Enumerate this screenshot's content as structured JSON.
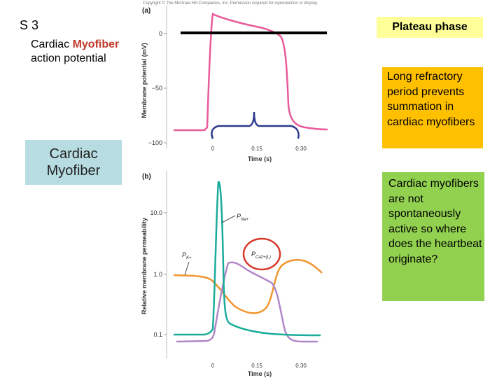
{
  "slide": {
    "number": "S 3",
    "title_prefix": "Cardiac ",
    "title_highlight": "Myofiber",
    "title_line2": "action potential"
  },
  "labels": {
    "myofiber": "Cardiac Myofiber",
    "plateau": "Plateau phase",
    "refractory": "Long refractory period prevents summation in cardiac myofibers",
    "pacemaker": "Cardiac myofibers are not spontaneously active so where does the heartbeat originate?"
  },
  "figure": {
    "copyright": "Copyright © The McGraw-Hill Companies, Inc. Permission required for reproduction or display.",
    "panel_a": {
      "tag": "(a)",
      "ylabel": "Membrane potential (mV)",
      "xlabel": "Time (s)",
      "yticks": [
        "0",
        "−50",
        "−100"
      ],
      "xticks": [
        "0",
        "0.15",
        "0.30"
      ]
    },
    "panel_b": {
      "tag": "(b)",
      "ylabel": "Relative membrane permeability",
      "xlabel": "Time (s)",
      "yticks": [
        "10.0",
        "1.0",
        "0.1"
      ],
      "xticks": [
        "0",
        "0.15",
        "0.30"
      ],
      "pna": "P",
      "pna_sub": "Na+",
      "pk": "P",
      "pk_sub": "K+",
      "pca": "P",
      "pca_sub": "Ca2+(L)"
    }
  },
  "colors": {
    "ap_trace": "#e85a9b",
    "na": "#1aab9b",
    "k": "#f0962e",
    "ca": "#b187c8",
    "bracket": "#2b3a8c",
    "circle": "#d8392b"
  }
}
